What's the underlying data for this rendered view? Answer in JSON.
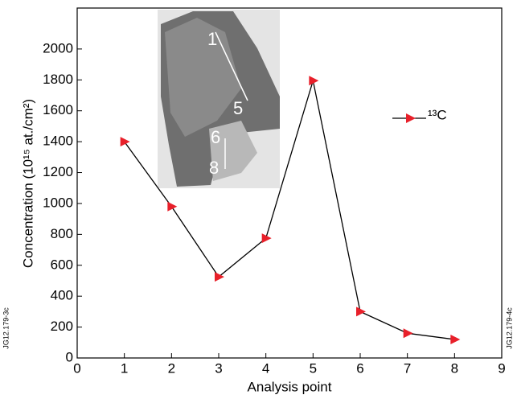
{
  "chart_data": {
    "type": "line",
    "x_label": "Analysis point",
    "y_label": "Concentration (10¹⁵ at./cm²)",
    "x": [
      1,
      2,
      3,
      4,
      5,
      6,
      7,
      8
    ],
    "series": [
      {
        "name": "¹³C",
        "color": "#e8202a",
        "values": [
          1400,
          980,
          525,
          775,
          1795,
          300,
          160,
          120
        ]
      }
    ],
    "xlim": [
      0,
      9
    ],
    "xticks": [
      0,
      1,
      2,
      3,
      4,
      5,
      6,
      7,
      8,
      9
    ],
    "ylim": [
      0,
      2265
    ],
    "yticks": [
      0,
      200,
      400,
      600,
      800,
      1000,
      1200,
      1400,
      1600,
      1800,
      2000
    ],
    "legend": "upper right",
    "inset_labels": [
      "1",
      "5",
      "6",
      "8"
    ],
    "figure_ids": [
      "JG12.179-3c",
      "JG12.179-4c"
    ]
  }
}
